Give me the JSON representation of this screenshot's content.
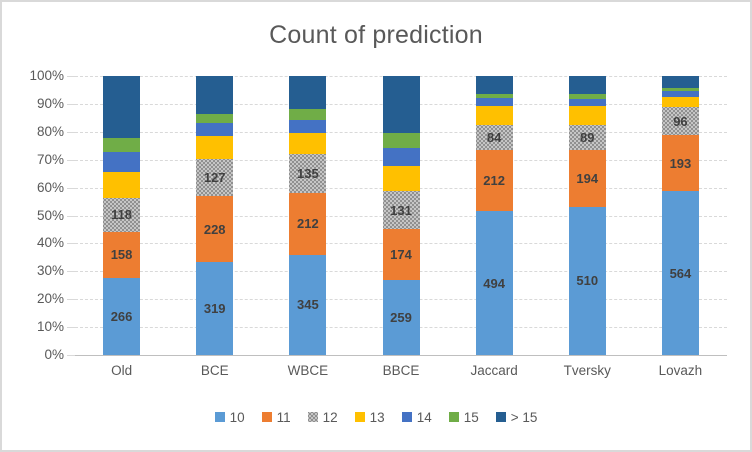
{
  "title": "Count of prediction",
  "y_axis": {
    "ticks": [
      "0%",
      "10%",
      "20%",
      "30%",
      "40%",
      "50%",
      "60%",
      "70%",
      "80%",
      "90%",
      "100%"
    ]
  },
  "chart_data": {
    "type": "bar",
    "subtype": "stacked-100",
    "title": "Count of prediction",
    "categories": [
      "Old",
      "BCE",
      "WBCE",
      "BBCE",
      "Jaccard",
      "Tversky",
      "Lovazh"
    ],
    "series": [
      {
        "name": "10",
        "color": "#5B9BD5",
        "show_labels": true,
        "values": [
          266,
          319,
          345,
          259,
          494,
          510,
          564
        ]
      },
      {
        "name": "11",
        "color": "#ED7D31",
        "show_labels": true,
        "values": [
          158,
          228,
          212,
          174,
          212,
          194,
          193
        ]
      },
      {
        "name": "12",
        "color": "#A5A5A5",
        "fill_pattern": "dots",
        "show_labels": true,
        "values": [
          118,
          127,
          135,
          131,
          84,
          89,
          96
        ]
      },
      {
        "name": "13",
        "color": "#FFC000",
        "show_labels": false,
        "values": [
          88,
          78,
          72,
          88,
          67,
          63,
          34
        ]
      },
      {
        "name": "14",
        "color": "#4472C4",
        "show_labels": false,
        "values": [
          67,
          46,
          43,
          62,
          27,
          25,
          21
        ]
      },
      {
        "name": "15",
        "color": "#70AD47",
        "show_labels": false,
        "values": [
          51,
          33,
          41,
          49,
          14,
          17,
          11
        ]
      },
      {
        "name": "> 15",
        "color": "#255E91",
        "show_labels": false,
        "values": [
          212,
          129,
          112,
          197,
          62,
          62,
          41
        ]
      }
    ],
    "column_total": 960,
    "ylim": [
      "0%",
      "100%"
    ],
    "gridlines": "horizontal-dashed",
    "legend_position": "bottom",
    "colors": {
      "axis_text": "#595959",
      "title_text": "#595959",
      "data_label": "#404040",
      "gridline": "#D9D9D9",
      "chart_border": "#D9D9D9"
    }
  }
}
